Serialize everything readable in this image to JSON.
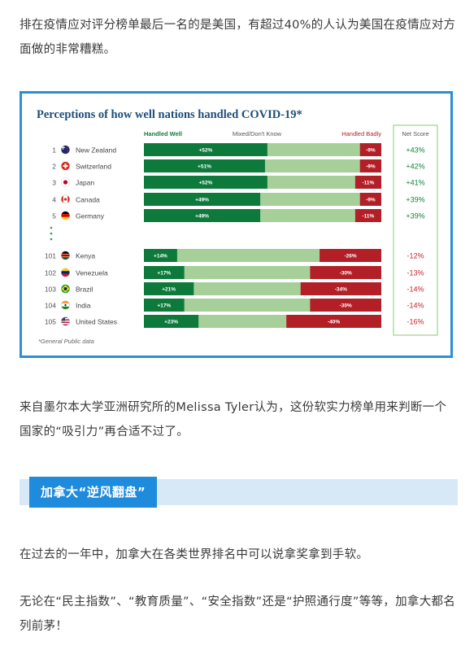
{
  "article": {
    "paragraph_1": "排在疫情应对评分榜单最后一名的是美国，有超过40%的人认为美国在疫情应对方面做的非常糟糕。",
    "paragraph_2": "来自墨尔本大学亚洲研究所的Melissa Tyler认为，这份软实力榜单用来判断一个国家的“吸引力”再合适不过了。",
    "section_title": "加拿大“逆风翻盘”",
    "paragraph_3": "在过去的一年中，加拿大在各类世界排名中可以说拿奖拿到手软。",
    "paragraph_4": "无论在“民主指数”、“教育质量”、“安全指数”还是“护照通行度”等等，加拿大都名列前茅！"
  },
  "colors": {
    "well": "#0d7a3c",
    "mixed": "#a6cf9a",
    "badly": "#b31f27",
    "title": "#1f4e79",
    "positive": "#12823c",
    "negative": "#c9252c",
    "frame": "#2c8fd6"
  },
  "chart_data": {
    "type": "bar",
    "stacked": true,
    "orientation": "horizontal",
    "title": "Perceptions of how well nations handled COVID-19*",
    "headers": {
      "well": "Handled Well",
      "mixed": "Mixed/Don't Know",
      "badly": "Handled Badly",
      "net": "Net Score"
    },
    "ellipsis_icon": "vertical-dots",
    "footnote": "*General Public data",
    "xlim": [
      0,
      100
    ],
    "rows": [
      {
        "rank": "1",
        "country": "New Zealand",
        "flag": "new-zealand-flag-icon",
        "well": 52,
        "well_label": "+52%",
        "badly": 9,
        "badly_label": "-9%",
        "net": "+43%"
      },
      {
        "rank": "2",
        "country": "Switzerland",
        "flag": "switzerland-flag-icon",
        "well": 51,
        "well_label": "+51%",
        "badly": 9,
        "badly_label": "-9%",
        "net": "+42%"
      },
      {
        "rank": "3",
        "country": "Japan",
        "flag": "japan-flag-icon",
        "well": 52,
        "well_label": "+52%",
        "badly": 11,
        "badly_label": "-11%",
        "net": "+41%"
      },
      {
        "rank": "4",
        "country": "Canada",
        "flag": "canada-flag-icon",
        "well": 49,
        "well_label": "+49%",
        "badly": 9,
        "badly_label": "-9%",
        "net": "+39%"
      },
      {
        "rank": "5",
        "country": "Germany",
        "flag": "germany-flag-icon",
        "well": 49,
        "well_label": "+49%",
        "badly": 11,
        "badly_label": "-11%",
        "net": "+39%"
      },
      {
        "rank": "101",
        "country": "Kenya",
        "flag": "kenya-flag-icon",
        "well": 14,
        "well_label": "+14%",
        "badly": 26,
        "badly_label": "-26%",
        "net": "-12%"
      },
      {
        "rank": "102",
        "country": "Venezuela",
        "flag": "venezuela-flag-icon",
        "well": 17,
        "well_label": "+17%",
        "badly": 30,
        "badly_label": "-30%",
        "net": "-13%"
      },
      {
        "rank": "103",
        "country": "Brazil",
        "flag": "brazil-flag-icon",
        "well": 21,
        "well_label": "+21%",
        "badly": 34,
        "badly_label": "-34%",
        "net": "-14%"
      },
      {
        "rank": "104",
        "country": "India",
        "flag": "india-flag-icon",
        "well": 17,
        "well_label": "+17%",
        "badly": 30,
        "badly_label": "-30%",
        "net": "-14%"
      },
      {
        "rank": "105",
        "country": "United States",
        "flag": "united-states-flag-icon",
        "well": 23,
        "well_label": "+23%",
        "badly": 40,
        "badly_label": "-40%",
        "net": "-16%"
      }
    ]
  }
}
